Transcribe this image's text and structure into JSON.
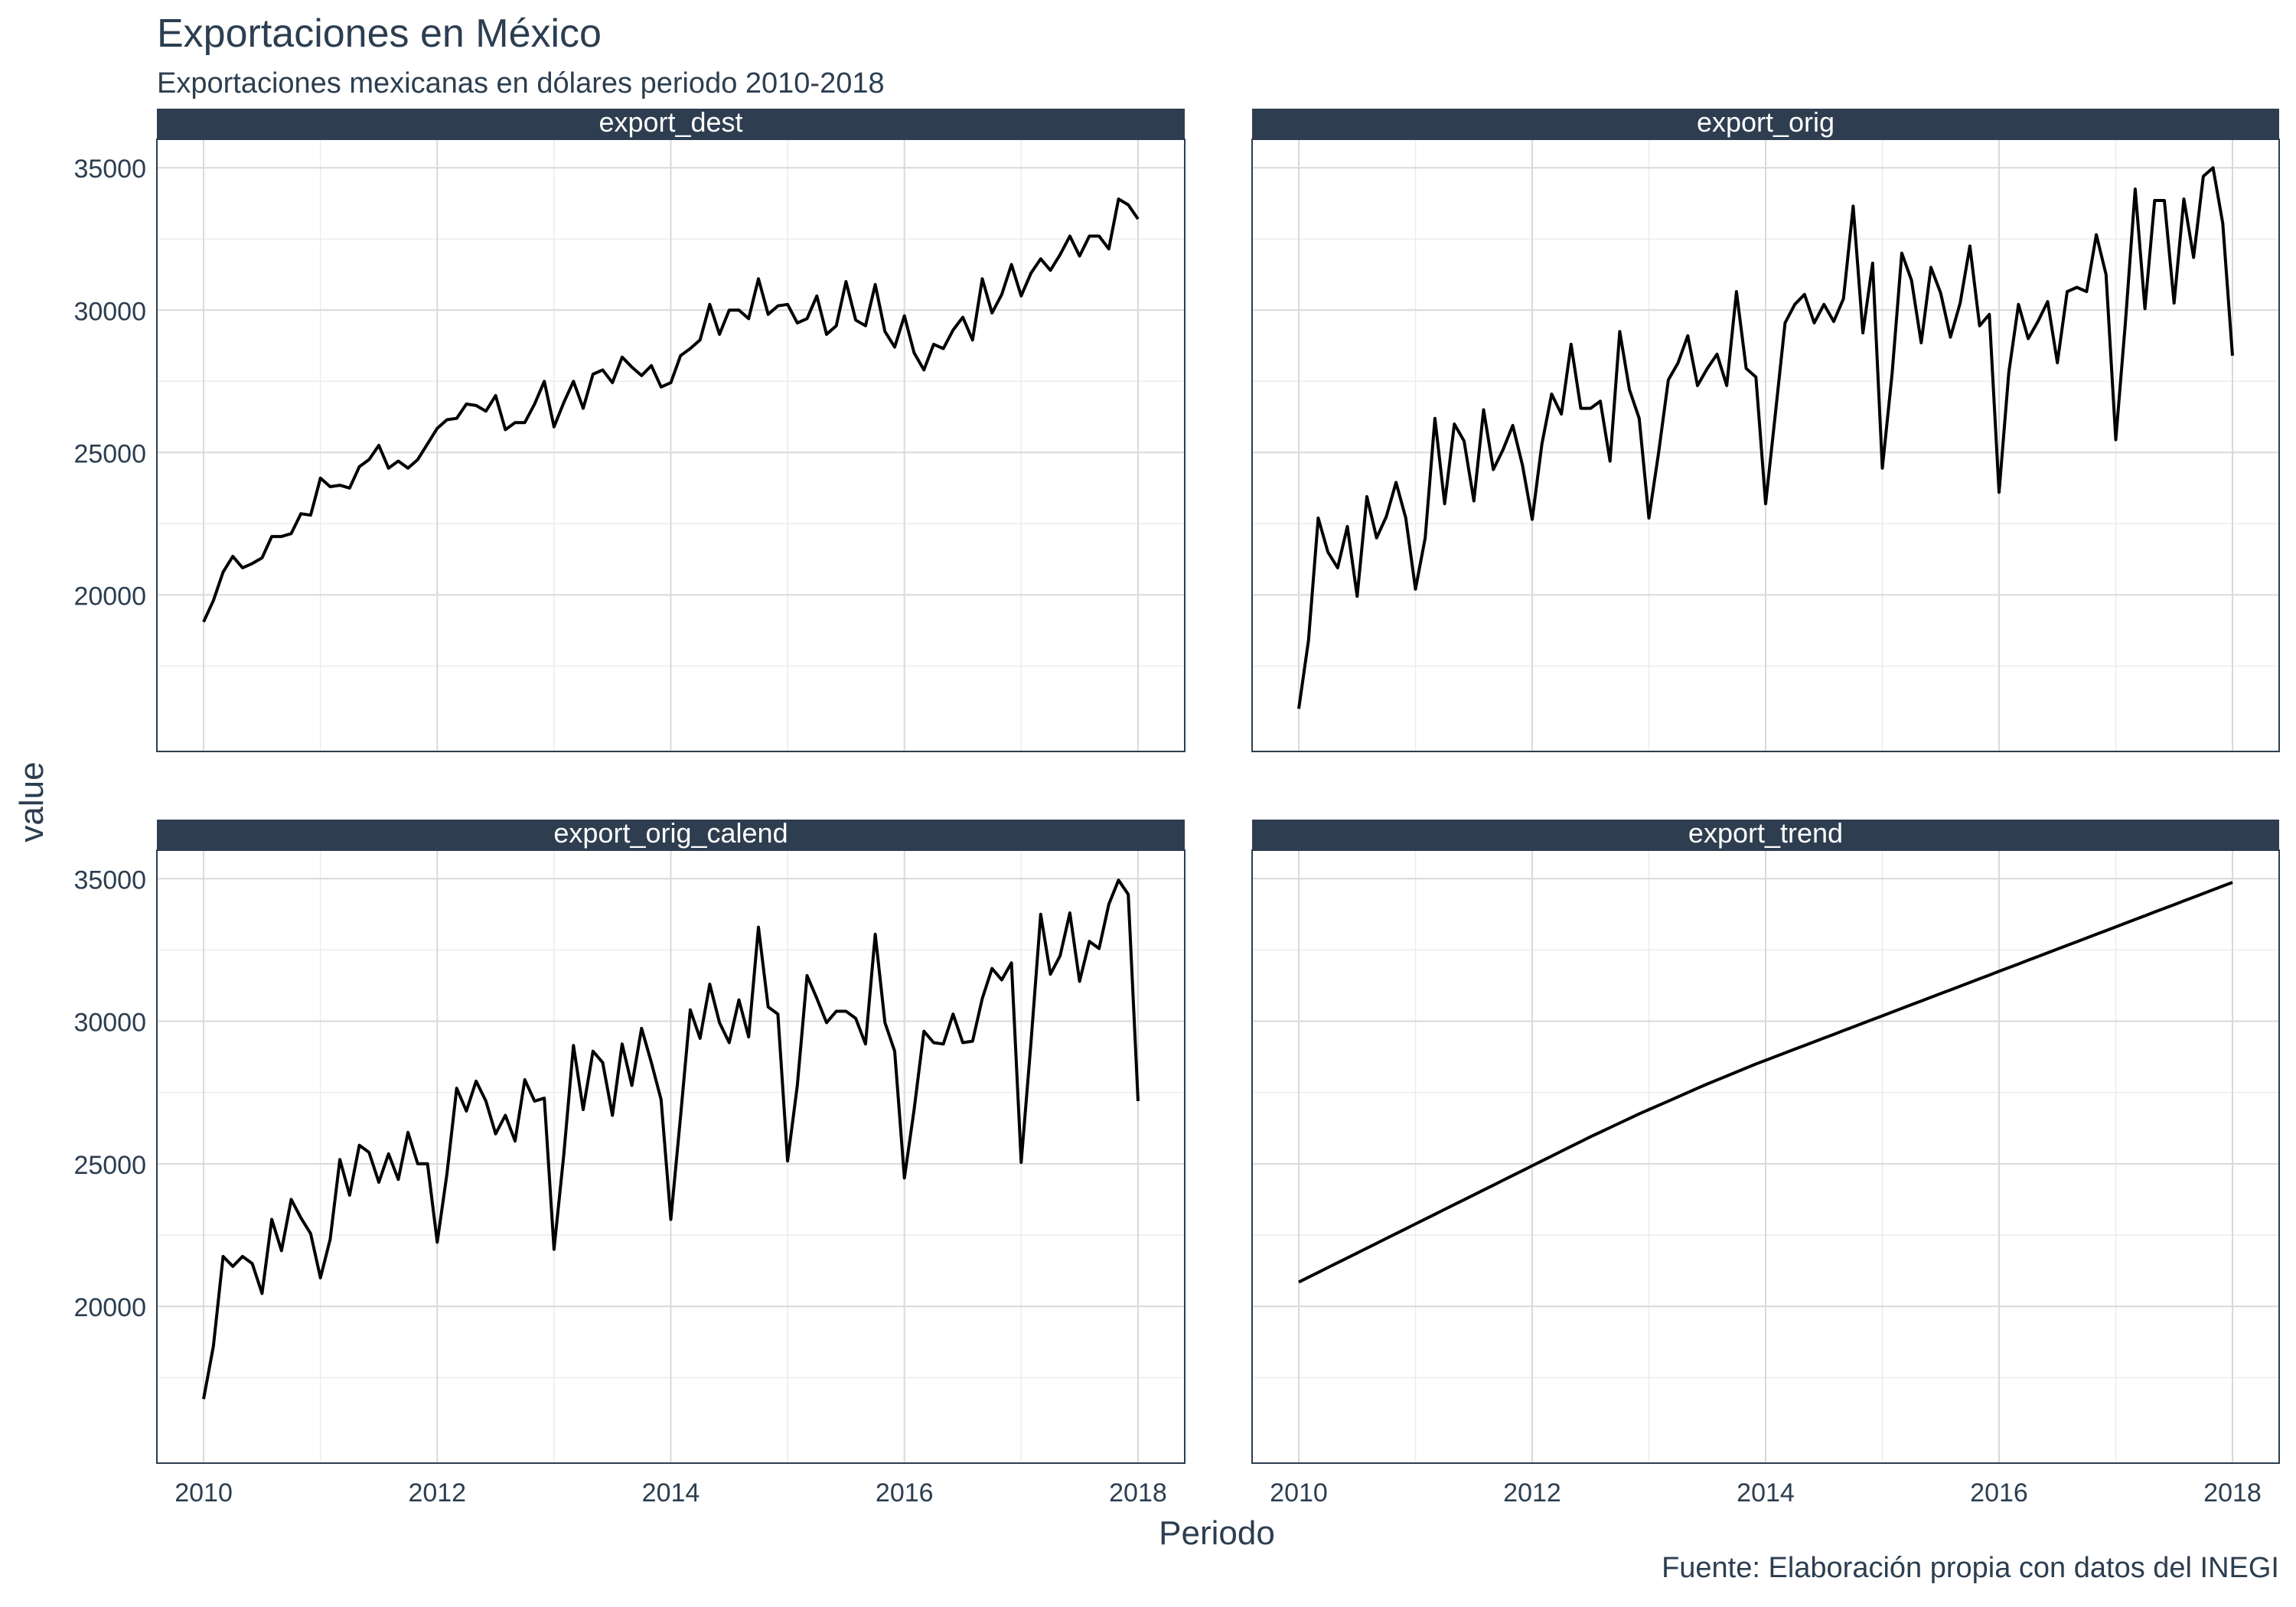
{
  "header": {
    "title": "Exportaciones en México",
    "subtitle": "Exportaciones mexicanas en dólares periodo 2010-2018",
    "caption": "Fuente: Elaboración propia con datos del INEGI"
  },
  "colors": {
    "strip": "#2e3e50",
    "strip_text": "#ffffff",
    "text": "#2c3e50",
    "grid_major": "#d9d9d9",
    "grid_minor": "#ececec",
    "line": "#000000",
    "panel_border": "#2c3e50"
  },
  "chart_data": {
    "type": "line",
    "xlabel": "Periodo",
    "ylabel": "value",
    "xlim": [
      2009.6,
      2018.4
    ],
    "ylim": [
      14500,
      36000
    ],
    "x_ticks": [
      2010,
      2012,
      2014,
      2016,
      2018
    ],
    "y_ticks": [
      20000,
      25000,
      30000,
      35000
    ],
    "facets": [
      {
        "name": "export_dest",
        "values": [
          19050,
          19800,
          20800,
          21350,
          20950,
          21100,
          21300,
          22050,
          22050,
          22150,
          22850,
          22800,
          24100,
          23800,
          23850,
          23750,
          24500,
          24750,
          25250,
          24450,
          24700,
          24450,
          24750,
          25300,
          25850,
          26150,
          26200,
          26700,
          26650,
          26450,
          27000,
          25800,
          26050,
          26050,
          26700,
          27500,
          25900,
          26750,
          27500,
          26550,
          27750,
          27900,
          27450,
          28350,
          28000,
          27700,
          28050,
          27300,
          27450,
          28400,
          28650,
          28950,
          30200,
          29150,
          30000,
          30000,
          29700,
          31100,
          29850,
          30150,
          30200,
          29550,
          29700,
          30500,
          29150,
          29450,
          31000,
          29650,
          29450,
          30900,
          29250,
          28700,
          29800,
          28500,
          27900,
          28800,
          28650,
          29300,
          29750,
          28950,
          31100,
          29900,
          30550,
          31600,
          30500,
          31300,
          31800,
          31400,
          31950,
          32600,
          31900,
          32600,
          32600,
          32150,
          33900,
          33700,
          33200
        ]
      },
      {
        "name": "export_orig",
        "values": [
          16000,
          18400,
          22700,
          21500,
          20950,
          22400,
          19950,
          23450,
          22000,
          22750,
          23950,
          22700,
          20200,
          22000,
          26200,
          23200,
          26000,
          25400,
          23300,
          26500,
          24400,
          25100,
          25950,
          24550,
          22650,
          25300,
          27050,
          26350,
          28800,
          26550,
          26550,
          26800,
          24700,
          29250,
          27200,
          26200,
          22700,
          25000,
          27550,
          28150,
          29100,
          27350,
          27950,
          28450,
          27350,
          30650,
          27950,
          27650,
          23200,
          26350,
          29550,
          30200,
          30550,
          29550,
          30200,
          29600,
          30400,
          33650,
          29200,
          31650,
          24450,
          27750,
          32000,
          31050,
          28850,
          31500,
          30600,
          29050,
          30250,
          32250,
          29450,
          29850,
          23600,
          27800,
          30200,
          29000,
          29600,
          30300,
          28150,
          30650,
          30800,
          30650,
          32650,
          31250,
          25450,
          29600,
          34250,
          30050,
          33850,
          33850,
          30250,
          33900,
          31850,
          34700,
          35000,
          33050,
          28400
        ]
      },
      {
        "name": "export_orig_calend",
        "values": [
          16750,
          18600,
          21750,
          21400,
          21750,
          21500,
          20450,
          23050,
          21950,
          23750,
          23100,
          22550,
          21000,
          22350,
          25150,
          23900,
          25650,
          25400,
          24350,
          25350,
          24450,
          26100,
          25000,
          25000,
          22250,
          24650,
          27650,
          26850,
          27900,
          27200,
          26050,
          26700,
          25800,
          27950,
          27200,
          27300,
          22000,
          25300,
          29150,
          26900,
          28950,
          28550,
          26700,
          29200,
          27750,
          29750,
          28550,
          27250,
          23050,
          26650,
          30400,
          29400,
          31300,
          29950,
          29250,
          30750,
          29450,
          33300,
          30500,
          30250,
          25100,
          27750,
          31600,
          30800,
          29950,
          30350,
          30350,
          30100,
          29200,
          33050,
          29950,
          28950,
          24500,
          26900,
          29650,
          29250,
          29200,
          30250,
          29250,
          29300,
          30800,
          31850,
          31450,
          32050,
          25050,
          29250,
          33750,
          31650,
          32300,
          33800,
          31400,
          32800,
          32550,
          34100,
          34950,
          34450,
          27200
        ]
      },
      {
        "name": "export_trend",
        "values": [
          20850,
          21020,
          21190,
          21360,
          21530,
          21700,
          21870,
          22040,
          22210,
          22380,
          22550,
          22720,
          22890,
          23060,
          23230,
          23400,
          23570,
          23740,
          23910,
          24080,
          24250,
          24420,
          24590,
          24760,
          24930,
          25100,
          25270,
          25440,
          25610,
          25780,
          25950,
          26110,
          26270,
          26430,
          26590,
          26750,
          26900,
          27050,
          27200,
          27350,
          27500,
          27650,
          27800,
          27940,
          28080,
          28220,
          28360,
          28500,
          28630,
          28760,
          28890,
          29020,
          29150,
          29280,
          29410,
          29540,
          29670,
          29800,
          29930,
          30060,
          30190,
          30320,
          30450,
          30580,
          30710,
          30840,
          30970,
          31100,
          31230,
          31360,
          31490,
          31620,
          31750,
          31880,
          32010,
          32140,
          32270,
          32400,
          32530,
          32660,
          32790,
          32920,
          33050,
          33180,
          33310,
          33440,
          33570,
          33700,
          33830,
          33960,
          34090,
          34220,
          34350,
          34480,
          34610,
          34740,
          34870
        ]
      }
    ]
  }
}
